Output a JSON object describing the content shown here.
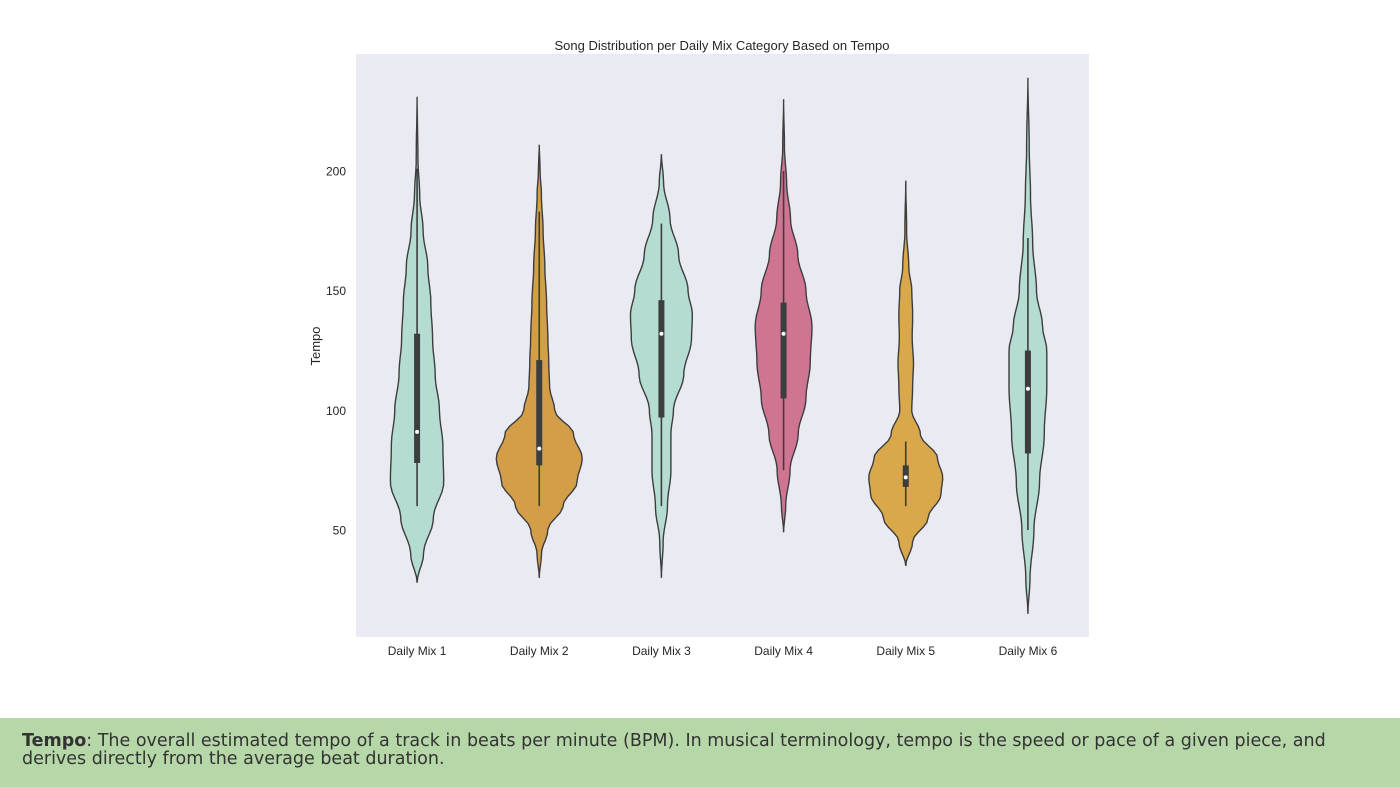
{
  "caption": {
    "term": "Tempo",
    "text": ": The overall estimated tempo of a track in beats per minute (BPM). In musical terminology, tempo is the speed or pace of a given piece, and derives directly from the average beat duration."
  },
  "colors": {
    "plot_background": "#eaeaf2",
    "outline": "#3d3d3d",
    "caption_background": "#b6d7a8"
  },
  "chart_data": {
    "type": "violin",
    "title": "Song Distribution per Daily Mix Category Based on Tempo",
    "xlabel": "",
    "ylabel": "Tempo",
    "ylim": [
      12,
      245
    ],
    "yticks": [
      50,
      100,
      150,
      200
    ],
    "grid": false,
    "categories": [
      "Daily Mix 1",
      "Daily Mix 2",
      "Daily Mix 3",
      "Daily Mix 4",
      "Daily Mix 5",
      "Daily Mix 6"
    ],
    "series": [
      {
        "category": "Daily Mix 1",
        "color": "#b4dcd2",
        "min": 60,
        "q1": 78,
        "median": 91,
        "q3": 132,
        "max": 201,
        "density_range": [
          28,
          231
        ],
        "density": [
          [
            28,
            0
          ],
          [
            40,
            0.15
          ],
          [
            55,
            0.38
          ],
          [
            70,
            0.62
          ],
          [
            85,
            0.6
          ],
          [
            100,
            0.52
          ],
          [
            115,
            0.42
          ],
          [
            130,
            0.36
          ],
          [
            145,
            0.32
          ],
          [
            160,
            0.25
          ],
          [
            175,
            0.14
          ],
          [
            190,
            0.06
          ],
          [
            205,
            0.02
          ],
          [
            231,
            0
          ]
        ]
      },
      {
        "category": "Daily Mix 2",
        "color": "#d49e48",
        "min": 60,
        "q1": 77,
        "median": 84,
        "q3": 121,
        "max": 183,
        "density_range": [
          30,
          211
        ],
        "density": [
          [
            30,
            0
          ],
          [
            40,
            0.05
          ],
          [
            50,
            0.2
          ],
          [
            60,
            0.55
          ],
          [
            70,
            0.88
          ],
          [
            80,
            1.0
          ],
          [
            90,
            0.8
          ],
          [
            100,
            0.36
          ],
          [
            110,
            0.24
          ],
          [
            120,
            0.22
          ],
          [
            130,
            0.2
          ],
          [
            145,
            0.17
          ],
          [
            160,
            0.13
          ],
          [
            175,
            0.09
          ],
          [
            190,
            0.05
          ],
          [
            200,
            0.02
          ],
          [
            211,
            0
          ]
        ]
      },
      {
        "category": "Daily Mix 3",
        "color": "#b4dcd2",
        "min": 60,
        "q1": 97,
        "median": 132,
        "q3": 146,
        "max": 178,
        "density_range": [
          30,
          207
        ],
        "density": [
          [
            30,
            0
          ],
          [
            45,
            0.04
          ],
          [
            60,
            0.14
          ],
          [
            75,
            0.22
          ],
          [
            90,
            0.22
          ],
          [
            100,
            0.28
          ],
          [
            115,
            0.52
          ],
          [
            130,
            0.7
          ],
          [
            140,
            0.72
          ],
          [
            150,
            0.62
          ],
          [
            165,
            0.4
          ],
          [
            180,
            0.2
          ],
          [
            195,
            0.05
          ],
          [
            207,
            0
          ]
        ]
      },
      {
        "category": "Daily Mix 4",
        "color": "#cf7592",
        "min": 75,
        "q1": 105,
        "median": 132,
        "q3": 145,
        "max": 200,
        "density_range": [
          49,
          230
        ],
        "density": [
          [
            49,
            0
          ],
          [
            60,
            0.05
          ],
          [
            75,
            0.15
          ],
          [
            90,
            0.34
          ],
          [
            105,
            0.52
          ],
          [
            120,
            0.62
          ],
          [
            135,
            0.66
          ],
          [
            150,
            0.52
          ],
          [
            165,
            0.33
          ],
          [
            180,
            0.16
          ],
          [
            195,
            0.07
          ],
          [
            210,
            0.02
          ],
          [
            230,
            0
          ]
        ]
      },
      {
        "category": "Daily Mix 5",
        "color": "#d8a84a",
        "min": 60,
        "q1": 68,
        "median": 72,
        "q3": 77,
        "max": 87,
        "density_range": [
          35,
          196
        ],
        "density": [
          [
            35,
            0
          ],
          [
            45,
            0.16
          ],
          [
            55,
            0.52
          ],
          [
            65,
            0.82
          ],
          [
            72,
            0.86
          ],
          [
            80,
            0.74
          ],
          [
            90,
            0.34
          ],
          [
            100,
            0.14
          ],
          [
            110,
            0.16
          ],
          [
            120,
            0.18
          ],
          [
            130,
            0.15
          ],
          [
            140,
            0.16
          ],
          [
            150,
            0.14
          ],
          [
            160,
            0.07
          ],
          [
            175,
            0.02
          ],
          [
            196,
            0
          ]
        ]
      },
      {
        "category": "Daily Mix 6",
        "color": "#b4dcd2",
        "min": 50,
        "q1": 82,
        "median": 109,
        "q3": 125,
        "max": 172,
        "density_range": [
          15,
          239
        ],
        "density": [
          [
            15,
            0
          ],
          [
            30,
            0.05
          ],
          [
            50,
            0.14
          ],
          [
            70,
            0.27
          ],
          [
            90,
            0.38
          ],
          [
            110,
            0.44
          ],
          [
            125,
            0.44
          ],
          [
            135,
            0.34
          ],
          [
            150,
            0.2
          ],
          [
            170,
            0.11
          ],
          [
            190,
            0.06
          ],
          [
            210,
            0.03
          ],
          [
            239,
            0
          ]
        ]
      }
    ]
  }
}
